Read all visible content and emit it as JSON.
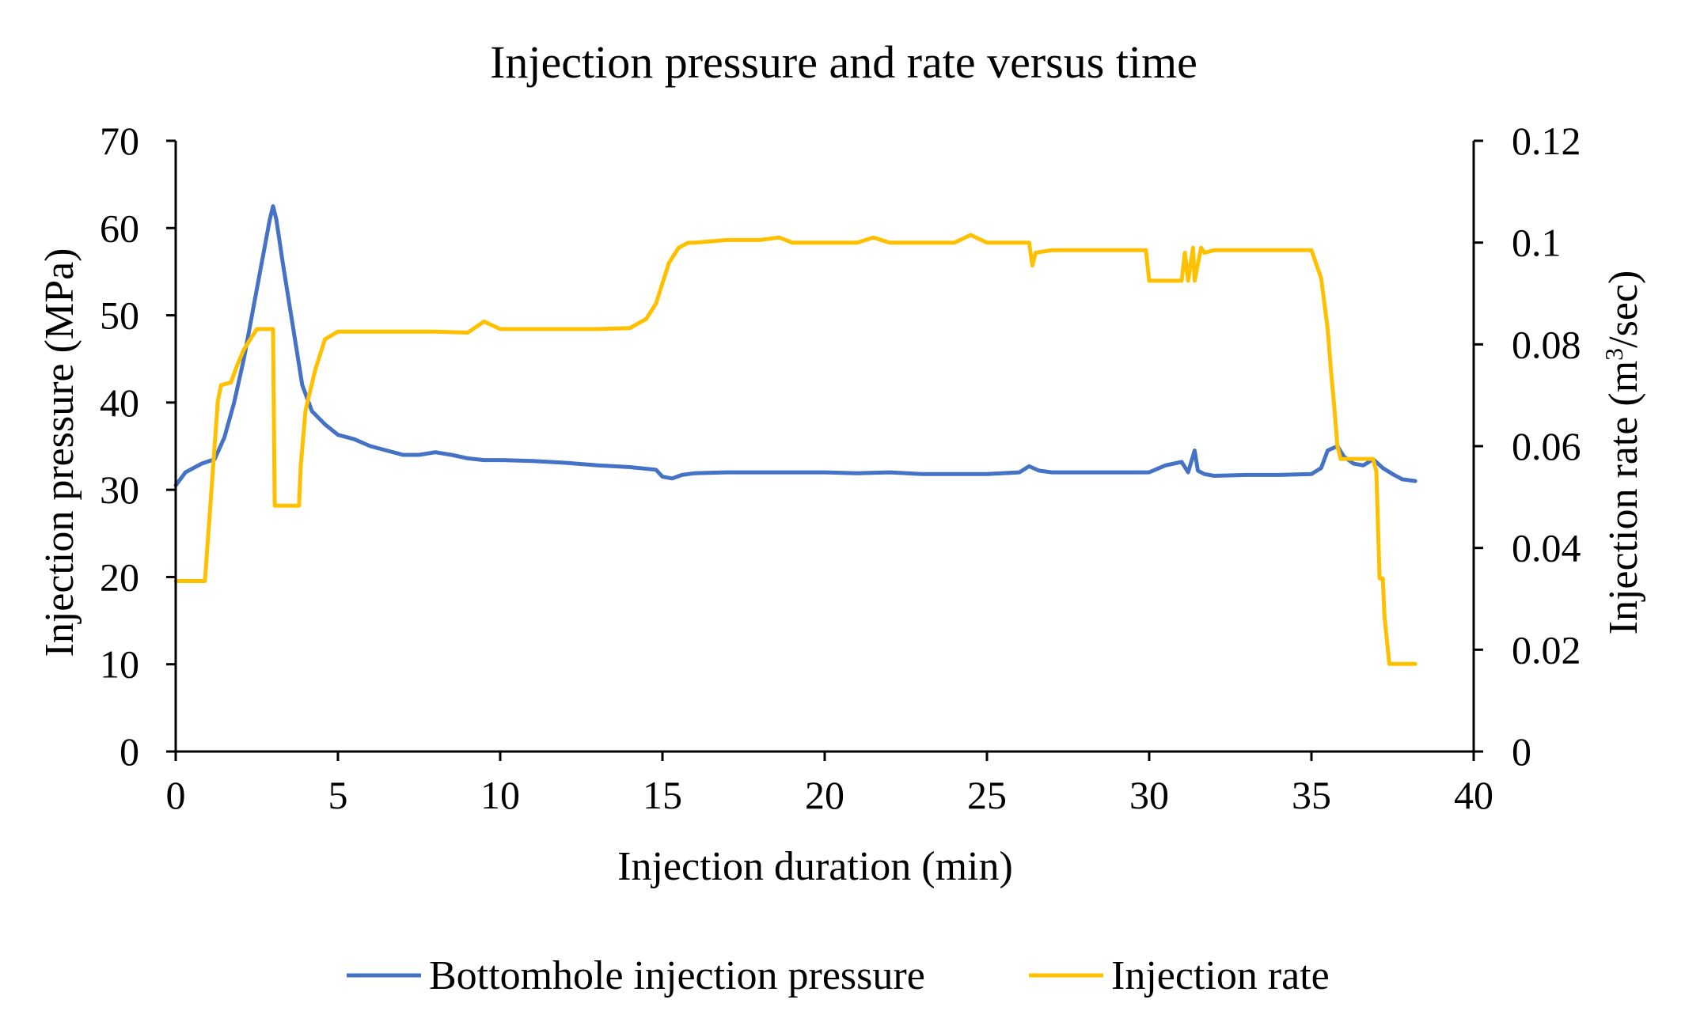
{
  "chart_data": {
    "type": "line",
    "title": "Injection pressure and rate versus time",
    "xlabel": "Injection duration (min)",
    "ylabel_left": "Injection pressure (MPa)",
    "ylabel_right_parts": [
      "Injection rate (m",
      "3",
      "/sec)"
    ],
    "xlim": [
      0,
      40
    ],
    "ylim_left": [
      0,
      70
    ],
    "ylim_right": [
      0,
      0.12
    ],
    "x_ticks": [
      "0",
      "5",
      "10",
      "15",
      "20",
      "25",
      "30",
      "35",
      "40"
    ],
    "y_left_ticks": [
      "0",
      "10",
      "20",
      "30",
      "40",
      "50",
      "60",
      "70"
    ],
    "y_right_ticks": [
      "0",
      "0.02",
      "0.04",
      "0.06",
      "0.08",
      "0.1",
      "0.12"
    ],
    "grid": false,
    "legend_position": "bottom",
    "series": [
      {
        "name": "Bottomhole injection pressure",
        "axis": "left",
        "color": "#4472C4",
        "x": [
          0,
          0.3,
          0.8,
          1.2,
          1.5,
          1.8,
          2.1,
          2.4,
          2.7,
          2.9,
          3.0,
          3.1,
          3.3,
          3.6,
          3.9,
          4.2,
          4.6,
          5.0,
          5.5,
          6.0,
          6.5,
          7.0,
          7.5,
          8.0,
          8.5,
          9.0,
          9.5,
          10.0,
          11.0,
          12.0,
          13.0,
          14.0,
          14.8,
          15.0,
          15.3,
          15.6,
          16.0,
          17.0,
          18.0,
          19.0,
          20.0,
          21.0,
          22.0,
          23.0,
          24.0,
          25.0,
          26.0,
          26.3,
          26.6,
          27.0,
          28.0,
          29.0,
          30.0,
          30.5,
          31.0,
          31.2,
          31.4,
          31.5,
          31.7,
          32.0,
          33.0,
          34.0,
          35.0,
          35.3,
          35.5,
          35.8,
          36.0,
          36.3,
          36.6,
          36.9,
          37.2,
          37.5,
          37.8,
          38.2
        ],
        "values": [
          30.5,
          32.0,
          33.0,
          33.5,
          36.0,
          40.0,
          45.0,
          51.0,
          57.0,
          61.0,
          62.5,
          61.0,
          56.0,
          49.0,
          42.0,
          39.0,
          37.5,
          36.3,
          35.8,
          35.0,
          34.5,
          34.0,
          34.0,
          34.3,
          34.0,
          33.6,
          33.4,
          33.4,
          33.3,
          33.1,
          32.8,
          32.6,
          32.3,
          31.5,
          31.3,
          31.7,
          31.9,
          32.0,
          32.0,
          32.0,
          32.0,
          31.9,
          32.0,
          31.8,
          31.8,
          31.8,
          32.0,
          32.7,
          32.2,
          32.0,
          32.0,
          32.0,
          32.0,
          32.8,
          33.2,
          32.0,
          34.5,
          32.2,
          31.8,
          31.6,
          31.7,
          31.7,
          31.8,
          32.5,
          34.5,
          35.0,
          33.8,
          33.0,
          32.8,
          33.5,
          32.5,
          31.8,
          31.2,
          31.0
        ]
      },
      {
        "name": "Injection rate",
        "axis": "right",
        "color": "#FFC000",
        "x": [
          0,
          0.9,
          1.3,
          1.4,
          1.7,
          1.9,
          2.1,
          2.3,
          2.5,
          2.9,
          3.0,
          3.05,
          3.8,
          3.85,
          4.0,
          4.3,
          4.6,
          5.0,
          5.5,
          6.0,
          7.0,
          8.0,
          9.0,
          9.5,
          10.0,
          11.0,
          12.0,
          13.0,
          14.0,
          14.5,
          14.8,
          15.0,
          15.2,
          15.5,
          15.8,
          16.0,
          17.0,
          18.0,
          18.6,
          19.0,
          20.0,
          21.0,
          21.5,
          22.0,
          23.0,
          24.0,
          24.5,
          25.0,
          26.0,
          26.3,
          26.4,
          26.5,
          27.0,
          28.0,
          29.0,
          29.9,
          30.0,
          31.0,
          31.1,
          31.2,
          31.35,
          31.4,
          31.6,
          31.7,
          32.0,
          33.0,
          34.0,
          35.0,
          35.3,
          35.5,
          35.6,
          35.7,
          35.8,
          35.9,
          36.0,
          36.5,
          36.9,
          37.0,
          37.1,
          37.2,
          37.25,
          37.4,
          38.2
        ],
        "values": [
          0.0335,
          0.0335,
          0.069,
          0.072,
          0.0725,
          0.076,
          0.079,
          0.081,
          0.083,
          0.083,
          0.083,
          0.0483,
          0.0483,
          0.056,
          0.067,
          0.075,
          0.081,
          0.0825,
          0.0825,
          0.0825,
          0.0825,
          0.0825,
          0.0823,
          0.0845,
          0.083,
          0.083,
          0.083,
          0.083,
          0.0832,
          0.085,
          0.088,
          0.092,
          0.096,
          0.099,
          0.1,
          0.1,
          0.1005,
          0.1005,
          0.101,
          0.1,
          0.1,
          0.1,
          0.101,
          0.1,
          0.1,
          0.1,
          0.1015,
          0.1,
          0.1,
          0.1,
          0.0955,
          0.098,
          0.0985,
          0.0985,
          0.0985,
          0.0985,
          0.0925,
          0.0925,
          0.098,
          0.0925,
          0.099,
          0.0925,
          0.099,
          0.098,
          0.0985,
          0.0985,
          0.0985,
          0.0985,
          0.093,
          0.083,
          0.075,
          0.068,
          0.06,
          0.0575,
          0.0575,
          0.0575,
          0.0575,
          0.055,
          0.034,
          0.034,
          0.0265,
          0.0172,
          0.0172
        ]
      }
    ]
  }
}
